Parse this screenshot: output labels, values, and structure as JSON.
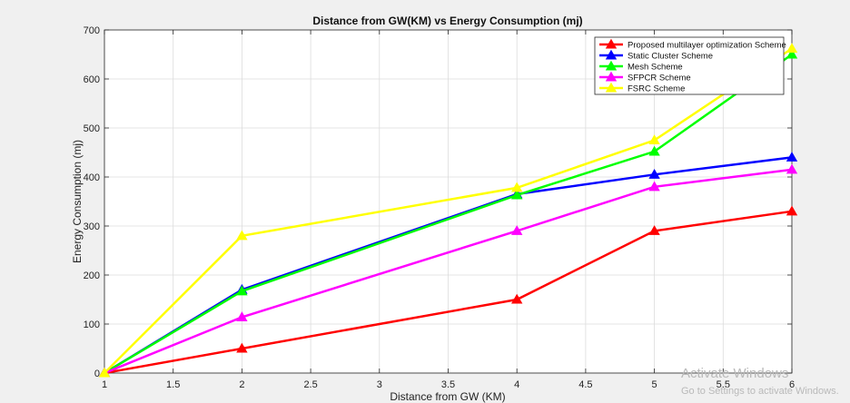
{
  "chart_data": {
    "type": "line",
    "title": "Distance from GW(KM) vs Energy Consumption (mj)",
    "xlabel": "Distance from GW (KM)",
    "ylabel": "Energy Consumption (mj)",
    "xlim": [
      1,
      6
    ],
    "ylim": [
      0,
      700
    ],
    "xticks": [
      "1",
      "1.5",
      "2",
      "2.5",
      "3",
      "3.5",
      "4",
      "4.5",
      "5",
      "5.5",
      "6"
    ],
    "yticks": [
      "0",
      "100",
      "200",
      "300",
      "400",
      "500",
      "600",
      "700"
    ],
    "grid": true,
    "legend_position": "top-right",
    "x": [
      1,
      2,
      4,
      5,
      6
    ],
    "series": [
      {
        "name": "Proposed multilayer optimization Scheme",
        "color": "#ff0000",
        "values": [
          0,
          50,
          150,
          290,
          330
        ]
      },
      {
        "name": "Static Cluster Scheme",
        "color": "#0000ff",
        "values": [
          0,
          170,
          365,
          405,
          440
        ]
      },
      {
        "name": "Mesh Scheme",
        "color": "#00ff00",
        "values": [
          0,
          167,
          363,
          452,
          650
        ]
      },
      {
        "name": "SFPCR Scheme",
        "color": "#ff00ff",
        "values": [
          0,
          114,
          290,
          380,
          415
        ]
      },
      {
        "name": "FSRC Scheme",
        "color": "#ffff00",
        "values": [
          0,
          280,
          378,
          475,
          662
        ]
      }
    ]
  },
  "watermark": {
    "title": "Activate Windows",
    "subtitle": "Go to Settings to activate Windows."
  }
}
